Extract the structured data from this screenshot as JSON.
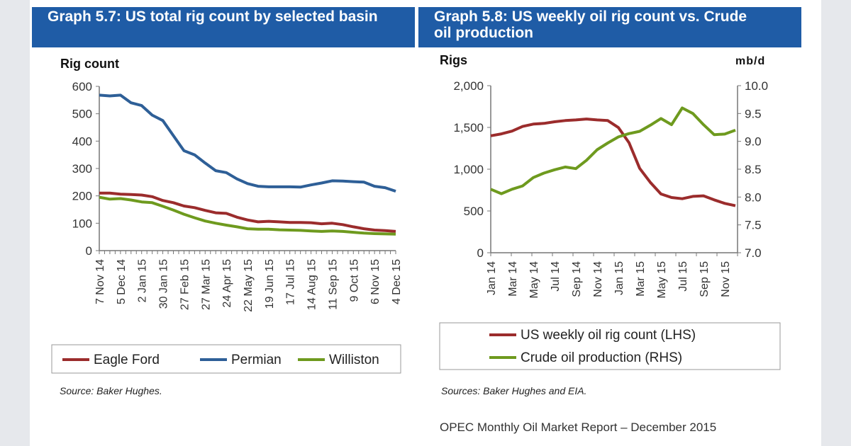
{
  "footer": "OPEC Monthly Oil Market Report – December 2015",
  "chart_data": [
    {
      "type": "line",
      "title": "Graph 5.7: US total rig count by selected basin",
      "ylabel": "Rig count",
      "ylim": [
        0,
        600
      ],
      "yticks": [
        "0",
        "100",
        "200",
        "300",
        "400",
        "500",
        "600"
      ],
      "xtick_labels": [
        "7 Nov 14",
        "5 Dec 14",
        "2 Jan 15",
        "30 Jan 15",
        "27 Feb 15",
        "27 Mar 15",
        "24 Apr 15",
        "22 May 15",
        "19 Jun 15",
        "17 Jul 15",
        "14 Aug 15",
        "11 Sep 15",
        "9 Oct 15",
        "6 Nov 15",
        "4 Dec 15"
      ],
      "x_note": "biweekly samples from 7 Nov 14 to 4 Dec 15",
      "legend_position": "bottom",
      "source": "Source: Baker Hughes.",
      "series": [
        {
          "name": "Eagle Ford",
          "color": "#9b2c2c",
          "values": [
            210,
            210,
            206,
            205,
            203,
            197,
            183,
            175,
            163,
            157,
            147,
            138,
            136,
            122,
            112,
            105,
            107,
            105,
            103,
            103,
            102,
            98,
            100,
            95,
            87,
            80,
            75,
            73,
            70
          ]
        },
        {
          "name": "Permian",
          "color": "#2e5f97",
          "values": [
            568,
            565,
            568,
            540,
            530,
            495,
            475,
            420,
            365,
            350,
            320,
            292,
            285,
            262,
            245,
            235,
            233,
            233,
            233,
            232,
            240,
            247,
            255,
            254,
            252,
            250,
            235,
            230,
            217
          ]
        },
        {
          "name": "Williston",
          "color": "#6e9a1e",
          "values": [
            195,
            188,
            190,
            185,
            178,
            175,
            162,
            148,
            133,
            120,
            108,
            100,
            93,
            87,
            80,
            78,
            78,
            76,
            75,
            74,
            72,
            70,
            72,
            70,
            67,
            64,
            62,
            61,
            60
          ]
        }
      ]
    },
    {
      "type": "line",
      "title": "Graph 5.8: US weekly oil rig count vs. Crude oil production",
      "ylabel": "Rigs",
      "y2label": "mb/d",
      "ylim": [
        0,
        2000
      ],
      "y2lim": [
        7.0,
        10.0
      ],
      "yticks": [
        "0",
        "500",
        "1,000",
        "1,500",
        "2,000"
      ],
      "y2ticks": [
        "7.0",
        "7.5",
        "8.0",
        "8.5",
        "9.0",
        "9.5",
        "10.0"
      ],
      "xtick_labels": [
        "Jan 14",
        "Mar 14",
        "May 14",
        "Jul 14",
        "Sep 14",
        "Nov 14",
        "Jan 15",
        "Mar 15",
        "May 15",
        "Jul 15",
        "Sep 15",
        "Nov 15"
      ],
      "x_note": "monthly Jan 14 to Dec 15",
      "legend_position": "bottom",
      "source": "Sources: Baker Hughes and EIA.",
      "series": [
        {
          "name": "US weekly oil rig count (LHS)",
          "axis": "left",
          "color": "#9b2c2c",
          "values": [
            1400,
            1423,
            1456,
            1512,
            1540,
            1548,
            1568,
            1582,
            1590,
            1601,
            1590,
            1582,
            1498,
            1317,
            1010,
            842,
            703,
            661,
            647,
            675,
            681,
            633,
            591,
            563
          ]
        },
        {
          "name": "Crude oil production (RHS)",
          "axis": "right",
          "color": "#6e9a1e",
          "values": [
            8.14,
            8.06,
            8.14,
            8.2,
            8.35,
            8.43,
            8.49,
            8.54,
            8.51,
            8.66,
            8.85,
            8.97,
            9.08,
            9.14,
            9.18,
            9.29,
            9.41,
            9.3,
            9.6,
            9.5,
            9.3,
            9.12,
            9.13,
            9.2
          ]
        }
      ]
    }
  ]
}
